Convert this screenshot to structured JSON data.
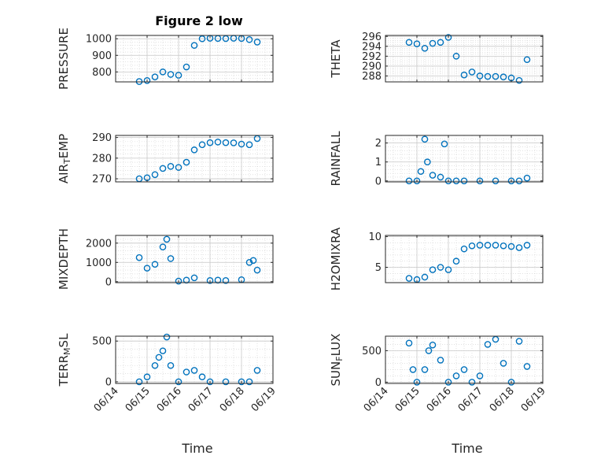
{
  "figure": {
    "title": "Figure 2 low",
    "xlabel": "Time",
    "marker_color": "#0072BD",
    "grid_color": "#d0d0d0",
    "axis_color": "#262626"
  },
  "chart_data": [
    {
      "type": "scatter",
      "ylabel_parts": [
        "PRESSURE"
      ],
      "title": "Figure 2 low",
      "xlim": [
        "06/14",
        "06/19"
      ],
      "ylim": [
        740,
        1020
      ],
      "yticks": [
        800,
        900,
        1000
      ],
      "ytick_labels": [
        "800",
        "900",
        "1000"
      ],
      "xticks": [
        "06/14",
        "06/15",
        "06/16",
        "06/17",
        "06/18",
        "06/19"
      ],
      "grid": true,
      "x": [
        "06/14 18:00",
        "06/15 00:00",
        "06/15 06:00",
        "06/15 12:00",
        "06/15 18:00",
        "06/16 00:00",
        "06/16 06:00",
        "06/16 12:00",
        "06/16 18:00",
        "06/17 00:00",
        "06/17 06:00",
        "06/17 12:00",
        "06/17 18:00",
        "06/18 00:00",
        "06/18 06:00",
        "06/18 12:00"
      ],
      "y": [
        742,
        748,
        770,
        800,
        785,
        780,
        830,
        960,
        1000,
        1003,
        1002,
        1001,
        1003,
        1002,
        995,
        980
      ]
    },
    {
      "type": "scatter",
      "ylabel_parts": [
        "THETA"
      ],
      "xlim": [
        "06/14",
        "06/19"
      ],
      "ylim": [
        286.8,
        296.2
      ],
      "yticks": [
        288,
        290,
        292,
        294,
        296
      ],
      "ytick_labels": [
        "288",
        "290",
        "292",
        "294",
        "296"
      ],
      "xticks": [
        "06/14",
        "06/15",
        "06/16",
        "06/17",
        "06/18",
        "06/19"
      ],
      "grid": true,
      "x": [
        "06/14 18:00",
        "06/15 00:00",
        "06/15 06:00",
        "06/15 12:00",
        "06/15 18:00",
        "06/16 00:00",
        "06/16 06:00",
        "06/16 12:00",
        "06/16 18:00",
        "06/17 00:00",
        "06/17 06:00",
        "06/17 12:00",
        "06/17 18:00",
        "06/18 00:00",
        "06/18 06:00",
        "06/18 12:00"
      ],
      "y": [
        294.8,
        294.5,
        293.6,
        294.6,
        294.8,
        295.8,
        292.0,
        288.2,
        288.8,
        288.0,
        287.9,
        287.9,
        287.8,
        287.6,
        287.1,
        291.3
      ]
    },
    {
      "type": "scatter",
      "ylabel_parts": [
        "AIR",
        "T",
        "EMP"
      ],
      "xlim": [
        "06/14",
        "06/19"
      ],
      "ylim": [
        268.5,
        291
      ],
      "yticks": [
        270,
        280,
        290
      ],
      "ytick_labels": [
        "270",
        "280",
        "290"
      ],
      "xticks": [
        "06/14",
        "06/15",
        "06/16",
        "06/17",
        "06/18",
        "06/19"
      ],
      "grid": true,
      "x": [
        "06/14 18:00",
        "06/15 00:00",
        "06/15 06:00",
        "06/15 12:00",
        "06/15 18:00",
        "06/16 00:00",
        "06/16 06:00",
        "06/16 12:00",
        "06/16 18:00",
        "06/17 00:00",
        "06/17 06:00",
        "06/17 12:00",
        "06/17 18:00",
        "06/18 00:00",
        "06/18 06:00",
        "06/18 12:00"
      ],
      "y": [
        270,
        270.5,
        272,
        275,
        276,
        275.5,
        278,
        284,
        286.5,
        287.5,
        287.8,
        287.5,
        287.4,
        286.8,
        286.5,
        289.5
      ]
    },
    {
      "type": "scatter",
      "ylabel_parts": [
        "RAINFALL"
      ],
      "xlim": [
        "06/14",
        "06/19"
      ],
      "ylim": [
        -0.05,
        2.4
      ],
      "yticks": [
        0,
        1,
        2
      ],
      "ytick_labels": [
        "0",
        "1",
        "2"
      ],
      "xticks": [
        "06/14",
        "06/15",
        "06/16",
        "06/17",
        "06/18",
        "06/19"
      ],
      "grid": true,
      "x": [
        "06/14 18:00",
        "06/15 00:00",
        "06/15 03:00",
        "06/15 06:00",
        "06/15 08:00",
        "06/15 12:00",
        "06/15 18:00",
        "06/15 21:00",
        "06/16 00:00",
        "06/16 06:00",
        "06/16 12:00",
        "06/17 00:00",
        "06/17 12:00",
        "06/18 00:00",
        "06/18 06:00",
        "06/18 12:00"
      ],
      "y": [
        0,
        0,
        0.5,
        2.2,
        1.0,
        0.3,
        0.2,
        1.95,
        0,
        0,
        0,
        0,
        0,
        0,
        0,
        0.15
      ]
    },
    {
      "type": "scatter",
      "ylabel_parts": [
        "MIXDEPTH"
      ],
      "xlim": [
        "06/14",
        "06/19"
      ],
      "ylim": [
        -50,
        2400
      ],
      "yticks": [
        0,
        1000,
        2000
      ],
      "ytick_labels": [
        "0",
        "1000",
        "2000"
      ],
      "xticks": [
        "06/14",
        "06/15",
        "06/16",
        "06/17",
        "06/18",
        "06/19"
      ],
      "grid": true,
      "x": [
        "06/14 18:00",
        "06/15 00:00",
        "06/15 06:00",
        "06/15 12:00",
        "06/15 15:00",
        "06/15 18:00",
        "06/16 00:00",
        "06/16 06:00",
        "06/16 12:00",
        "06/17 00:00",
        "06/17 06:00",
        "06/17 12:00",
        "06/18 00:00",
        "06/18 06:00",
        "06/18 09:00",
        "06/18 12:00"
      ],
      "y": [
        1250,
        700,
        900,
        1800,
        2200,
        1200,
        30,
        80,
        200,
        60,
        80,
        60,
        100,
        1000,
        1100,
        600
      ]
    },
    {
      "type": "scatter",
      "ylabel_parts": [
        "H2OMIXRA"
      ],
      "xlim": [
        "06/14",
        "06/19"
      ],
      "ylim": [
        2.5,
        10.2
      ],
      "yticks": [
        5,
        10
      ],
      "ytick_labels": [
        "5",
        "10"
      ],
      "xticks": [
        "06/14",
        "06/15",
        "06/16",
        "06/17",
        "06/18",
        "06/19"
      ],
      "grid": true,
      "x": [
        "06/14 18:00",
        "06/15 00:00",
        "06/15 06:00",
        "06/15 12:00",
        "06/15 18:00",
        "06/16 00:00",
        "06/16 06:00",
        "06/16 12:00",
        "06/16 18:00",
        "06/17 00:00",
        "06/17 06:00",
        "06/17 12:00",
        "06/17 18:00",
        "06/18 00:00",
        "06/18 06:00",
        "06/18 12:00"
      ],
      "y": [
        3.2,
        3.0,
        3.4,
        4.6,
        5.0,
        4.6,
        6.0,
        8.0,
        8.5,
        8.6,
        8.6,
        8.6,
        8.5,
        8.4,
        8.2,
        8.6
      ]
    },
    {
      "type": "scatter",
      "ylabel_parts": [
        "TERR",
        "M",
        "SL"
      ],
      "xlim": [
        "06/14",
        "06/19"
      ],
      "ylim": [
        -20,
        560
      ],
      "yticks": [
        0,
        500
      ],
      "ytick_labels": [
        "0",
        "500"
      ],
      "xticks": [
        "06/14",
        "06/15",
        "06/16",
        "06/17",
        "06/18",
        "06/19"
      ],
      "grid": true,
      "x": [
        "06/14 18:00",
        "06/15 00:00",
        "06/15 06:00",
        "06/15 09:00",
        "06/15 12:00",
        "06/15 15:00",
        "06/15 18:00",
        "06/16 00:00",
        "06/16 06:00",
        "06/16 12:00",
        "06/16 18:00",
        "06/17 00:00",
        "06/17 12:00",
        "06/18 00:00",
        "06/18 06:00",
        "06/18 12:00"
      ],
      "y": [
        0,
        60,
        200,
        300,
        380,
        550,
        200,
        0,
        120,
        140,
        60,
        0,
        0,
        0,
        0,
        140
      ]
    },
    {
      "type": "scatter",
      "ylabel_parts": [
        "SUN",
        "F",
        "LUX"
      ],
      "xlim": [
        "06/14",
        "06/19"
      ],
      "ylim": [
        -20,
        730
      ],
      "yticks": [
        0,
        500
      ],
      "ytick_labels": [
        "0",
        "500"
      ],
      "xticks": [
        "06/14",
        "06/15",
        "06/16",
        "06/17",
        "06/18",
        "06/19"
      ],
      "grid": true,
      "x": [
        "06/14 18:00",
        "06/14 21:00",
        "06/15 00:00",
        "06/15 06:00",
        "06/15 09:00",
        "06/15 12:00",
        "06/15 18:00",
        "06/16 00:00",
        "06/16 06:00",
        "06/16 12:00",
        "06/16 18:00",
        "06/17 00:00",
        "06/17 06:00",
        "06/17 12:00",
        "06/17 18:00",
        "06/18 00:00",
        "06/18 06:00",
        "06/18 12:00"
      ],
      "y": [
        620,
        200,
        0,
        200,
        500,
        590,
        350,
        0,
        100,
        200,
        0,
        100,
        600,
        680,
        300,
        0,
        650,
        250
      ]
    }
  ]
}
